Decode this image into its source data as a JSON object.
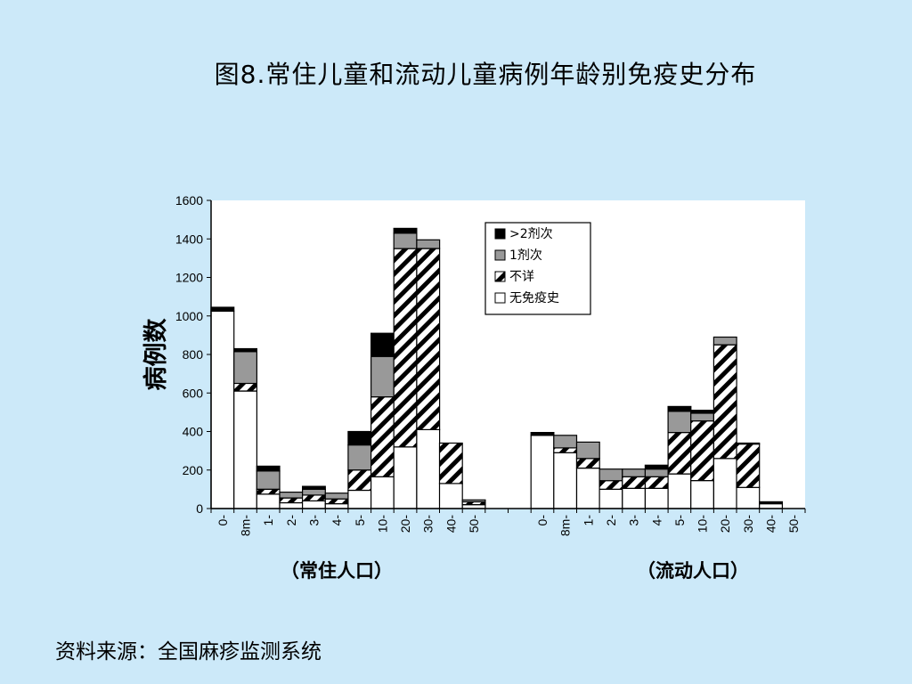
{
  "slide": {
    "title": "图8.常住儿童和流动儿童病例年龄别免疫史分布",
    "source": "资料来源：全国麻疹监测系统"
  },
  "colors": {
    "background": "#cce9f9",
    "plot_area": "#ffffff",
    "dose2plus": "#000000",
    "dose1": "#999999",
    "unknown": "hatched black/white",
    "none": "#ffffff"
  },
  "chart_data": {
    "type": "bar",
    "stacked": true,
    "title": "",
    "ylabel": "病例数",
    "ylim": [
      0,
      1600
    ],
    "yticks": [
      0,
      200,
      400,
      600,
      800,
      1000,
      1200,
      1400,
      1600
    ],
    "grid": false,
    "legend_position": "top-center",
    "legend": [
      ">2剂次",
      "1剂次",
      "不详",
      "无免疫史"
    ],
    "groups": [
      {
        "label": "（常住人口）",
        "categories": [
          "0-",
          "8m-",
          "1-",
          "2-",
          "3-",
          "4-",
          "5-",
          "10-",
          "20-",
          "30-",
          "40-",
          "50-"
        ],
        "series": [
          {
            "name": "无免疫史",
            "values": [
              1025,
              610,
              75,
              30,
              40,
              25,
              95,
              165,
              320,
              410,
              130,
              20
            ]
          },
          {
            "name": "不详",
            "values": [
              0,
              40,
              25,
              25,
              30,
              25,
              105,
              415,
              1030,
              940,
              210,
              15
            ]
          },
          {
            "name": "1剂次",
            "values": [
              0,
              165,
              95,
              30,
              30,
              30,
              130,
              210,
              80,
              45,
              0,
              10
            ]
          },
          {
            "name": ">2剂次",
            "values": [
              20,
              15,
              25,
              0,
              15,
              0,
              70,
              120,
              25,
              0,
              0,
              0
            ]
          }
        ]
      },
      {
        "label": "（流动人口）",
        "categories": [
          "0-",
          "8m-",
          "1-",
          "2-",
          "3-",
          "4-",
          "5-",
          "10-",
          "20-",
          "30-",
          "40-",
          "50-"
        ],
        "series": [
          {
            "name": "无免疫史",
            "values": [
              380,
              290,
              210,
              100,
              105,
              105,
              180,
              145,
              260,
              110,
              25,
              0
            ]
          },
          {
            "name": "不详",
            "values": [
              0,
              25,
              50,
              45,
              60,
              60,
              215,
              310,
              590,
              225,
              0,
              0
            ]
          },
          {
            "name": "1剂次",
            "values": [
              0,
              65,
              85,
              60,
              40,
              40,
              110,
              40,
              40,
              0,
              0,
              0
            ]
          },
          {
            "name": ">2剂次",
            "values": [
              15,
              0,
              0,
              0,
              0,
              20,
              25,
              15,
              0,
              5,
              10,
              0
            ]
          }
        ]
      }
    ]
  }
}
